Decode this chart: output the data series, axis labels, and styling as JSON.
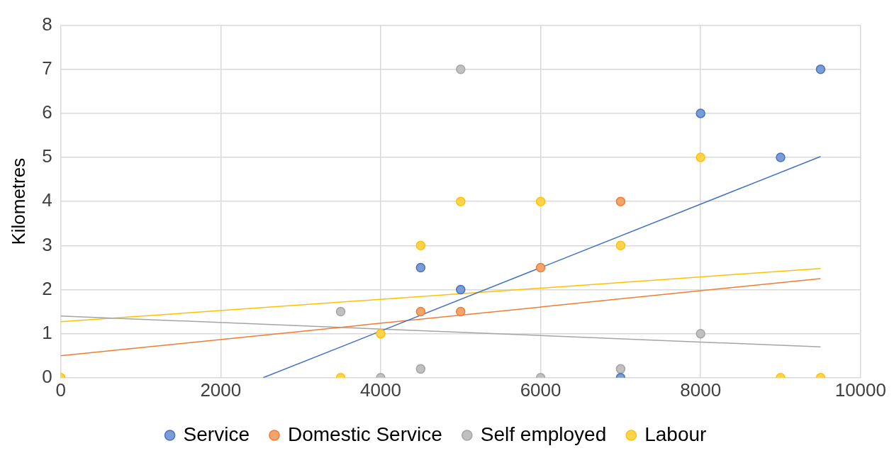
{
  "chart_data": {
    "type": "scatter",
    "ylabel": "Kilometres",
    "xlim": [
      0,
      10000
    ],
    "xticks": [
      0,
      2000,
      4000,
      6000,
      8000,
      10000
    ],
    "ylim": [
      0,
      8
    ],
    "yticks": [
      0,
      1,
      2,
      3,
      4,
      5,
      6,
      7,
      8
    ],
    "grid": true,
    "legend": "bottom",
    "marker": "circle",
    "series": [
      {
        "name": "Service",
        "color": "#4472c4",
        "x": [
          4500,
          5000,
          7000,
          8000,
          9000,
          9500
        ],
        "values": [
          2.5,
          2,
          0,
          6,
          5,
          7
        ]
      },
      {
        "name": "Domestic Service",
        "color": "#ed7d31",
        "x": [
          4500,
          5000,
          6000,
          7000
        ],
        "values": [
          1.5,
          1.5,
          2.5,
          4
        ]
      },
      {
        "name": "Self employed",
        "color": "#a5a5a5",
        "x": [
          3500,
          4000,
          4500,
          5000,
          6000,
          7000,
          8000
        ],
        "values": [
          1.5,
          0,
          0.2,
          7,
          0,
          0.2,
          1
        ]
      },
      {
        "name": "Labour",
        "color": "#ffc000",
        "x": [
          0,
          3500,
          4000,
          4500,
          5000,
          6000,
          7000,
          8000,
          9000,
          9500
        ],
        "values": [
          0,
          0,
          1,
          3,
          4,
          4,
          3,
          5,
          0,
          0
        ]
      },
      {
        "type": "line",
        "marker": "none",
        "color": "#4472c4",
        "x": [
          2530,
          9500
        ],
        "values": [
          0,
          5.02
        ]
      },
      {
        "type": "line",
        "marker": "none",
        "color": "#ed7d31",
        "x": [
          0,
          9500
        ],
        "values": [
          0.5,
          2.25
        ]
      },
      {
        "type": "line",
        "marker": "none",
        "color": "#a5a5a5",
        "x": [
          0,
          9500
        ],
        "values": [
          1.4,
          0.7
        ]
      },
      {
        "type": "line",
        "marker": "none",
        "color": "#ffc000",
        "x": [
          0,
          9500
        ],
        "values": [
          1.27,
          2.48
        ]
      }
    ]
  }
}
